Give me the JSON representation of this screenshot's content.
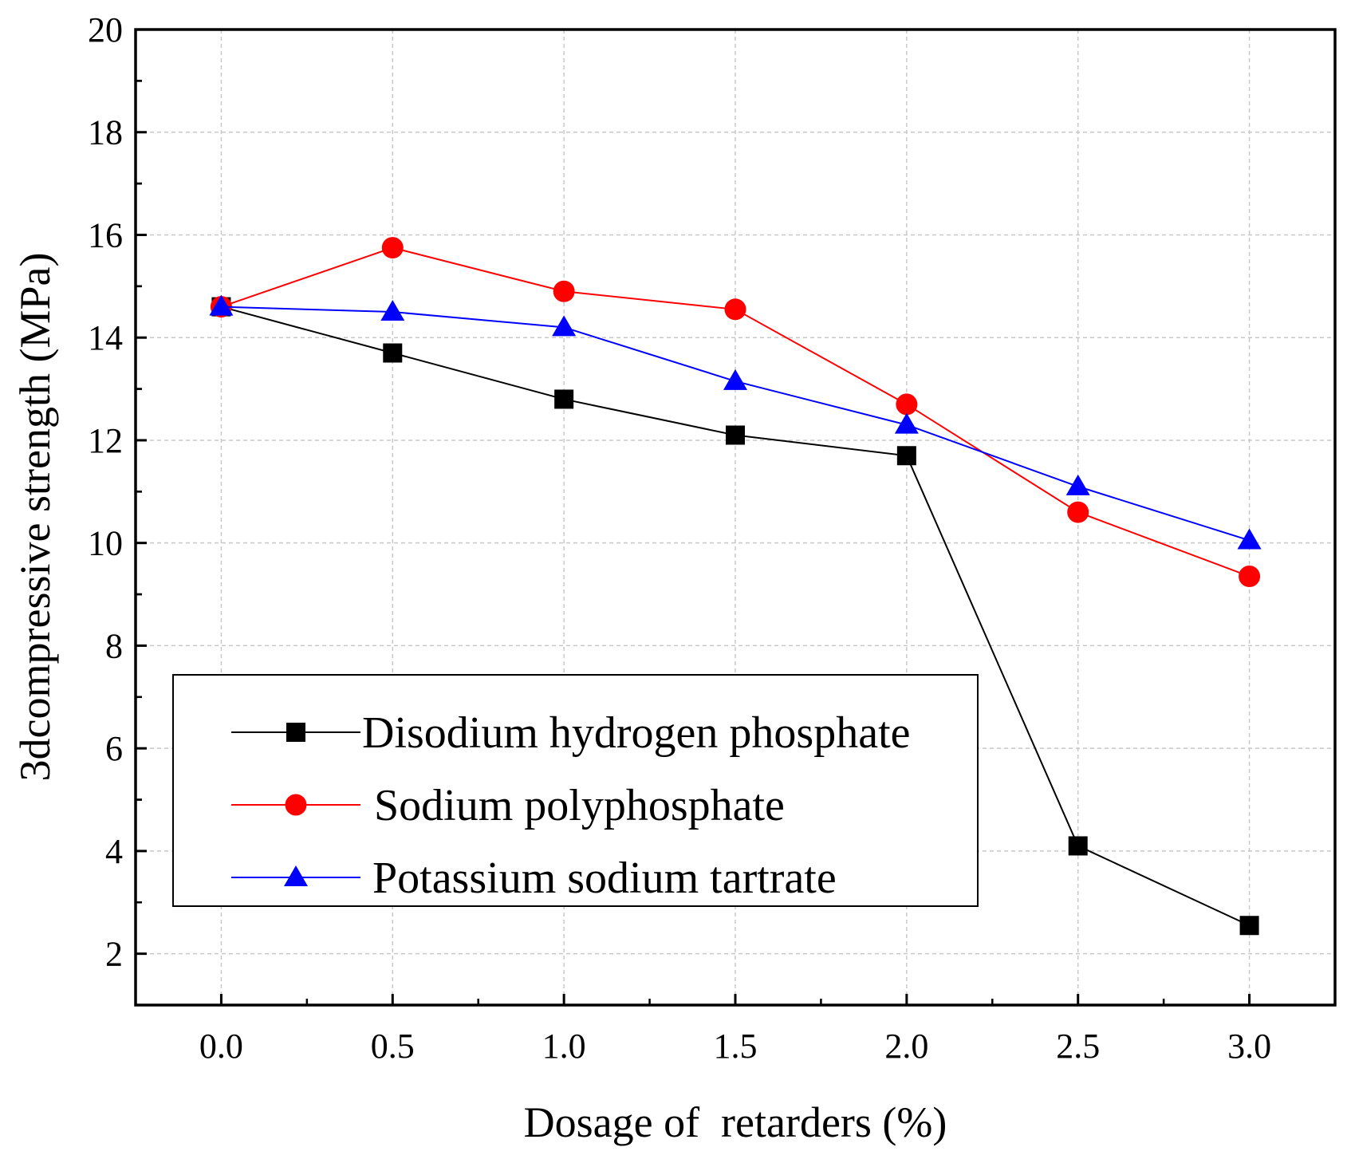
{
  "chart_data": {
    "type": "line",
    "title": "",
    "xlabel": "Dosage of  retarders (%)",
    "ylabel": "3dcompressive strength (MPa)",
    "xlim": [
      -0.25,
      3.25
    ],
    "ylim": [
      1,
      20
    ],
    "x_ticks": [
      0.0,
      0.5,
      1.0,
      1.5,
      2.0,
      2.5,
      3.0
    ],
    "x_tick_labels": [
      "0.0",
      "0.5",
      "1.0",
      "1.5",
      "2.0",
      "2.5",
      "3.0"
    ],
    "y_ticks": [
      2,
      4,
      6,
      8,
      10,
      12,
      14,
      16,
      18,
      20
    ],
    "y_tick_labels": [
      "2",
      "4",
      "6",
      "8",
      "10",
      "12",
      "14",
      "16",
      "18",
      "20"
    ],
    "grid": true,
    "legend_position": "lower-left",
    "x": [
      0.0,
      0.5,
      1.0,
      1.5,
      2.0,
      2.5,
      3.0
    ],
    "series": [
      {
        "name": "Disodium hydrogen phosphate",
        "color": "#000000",
        "marker": "square",
        "values": [
          14.6,
          13.7,
          12.8,
          12.1,
          11.7,
          4.1,
          2.55
        ]
      },
      {
        "name": "Sodium polyphosphate",
        "color": "#ff0000",
        "marker": "circle",
        "values": [
          14.6,
          15.75,
          14.9,
          14.55,
          12.7,
          10.6,
          9.35
        ]
      },
      {
        "name": "Potassium sodium tartrate",
        "color": "#0000ff",
        "marker": "triangle",
        "values": [
          14.6,
          14.5,
          14.2,
          13.15,
          12.3,
          11.1,
          10.05
        ]
      }
    ]
  }
}
